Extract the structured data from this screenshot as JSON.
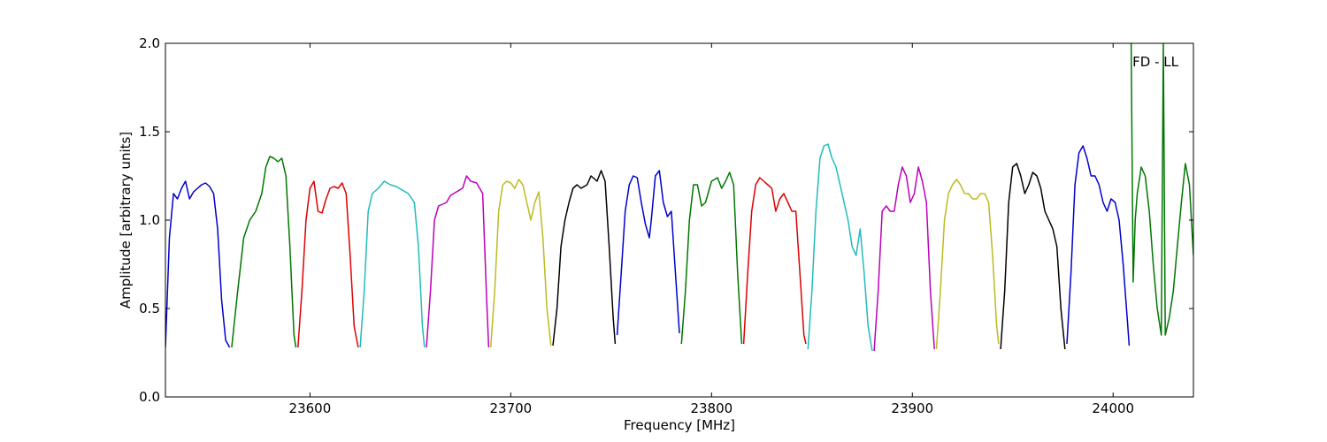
{
  "chart_data": {
    "type": "line",
    "title": "",
    "xlabel": "Frequency [MHz]",
    "ylabel": "Amplitude [arbitrary units]",
    "xlim": [
      23528,
      24040
    ],
    "ylim": [
      0.0,
      2.0
    ],
    "x_ticks": [
      23600,
      23700,
      23800,
      23900,
      24000
    ],
    "x_tick_labels": [
      "23600",
      "23700",
      "23800",
      "23900",
      "24000"
    ],
    "y_ticks": [
      0.0,
      0.5,
      1.0,
      1.5,
      2.0
    ],
    "y_tick_labels": [
      "0.0",
      "0.5",
      "1.0",
      "1.5",
      "2.0"
    ],
    "grid": false,
    "annotation": "FD - LL",
    "series": [
      {
        "color": "#0000cc",
        "x": [
          23528,
          23530,
          23532,
          23534,
          23536,
          23538,
          23540,
          23542,
          23544,
          23546,
          23548,
          23550,
          23552,
          23554,
          23556,
          23558,
          23560
        ],
        "y": [
          0.28,
          0.9,
          1.15,
          1.12,
          1.18,
          1.22,
          1.12,
          1.16,
          1.18,
          1.2,
          1.21,
          1.19,
          1.15,
          0.95,
          0.55,
          0.32,
          0.28
        ]
      },
      {
        "color": "#007700",
        "x": [
          23561,
          23564,
          23567,
          23570,
          23573,
          23576,
          23578,
          23580,
          23582,
          23584,
          23586,
          23588,
          23590,
          23592,
          23593
        ],
        "y": [
          0.28,
          0.6,
          0.9,
          1.0,
          1.05,
          1.15,
          1.3,
          1.36,
          1.35,
          1.33,
          1.35,
          1.25,
          0.85,
          0.35,
          0.28
        ]
      },
      {
        "color": "#dd0000",
        "x": [
          23594,
          23596,
          23598,
          23600,
          23602,
          23604,
          23606,
          23608,
          23610,
          23612,
          23614,
          23616,
          23618,
          23620,
          23622,
          23624
        ],
        "y": [
          0.28,
          0.6,
          1.0,
          1.18,
          1.22,
          1.05,
          1.04,
          1.12,
          1.18,
          1.19,
          1.18,
          1.21,
          1.15,
          0.8,
          0.4,
          0.28
        ]
      },
      {
        "color": "#22bbbb",
        "x": [
          23625,
          23627,
          23629,
          23631,
          23634,
          23637,
          23640,
          23643,
          23646,
          23649,
          23652,
          23654,
          23656,
          23657
        ],
        "y": [
          0.28,
          0.6,
          1.05,
          1.15,
          1.18,
          1.22,
          1.2,
          1.19,
          1.17,
          1.15,
          1.1,
          0.85,
          0.4,
          0.28
        ]
      },
      {
        "color": "#bb00bb",
        "x": [
          23658,
          23660,
          23662,
          23664,
          23666,
          23668,
          23670,
          23673,
          23676,
          23678,
          23680,
          23683,
          23686,
          23688,
          23689
        ],
        "y": [
          0.28,
          0.6,
          1.0,
          1.08,
          1.09,
          1.1,
          1.14,
          1.16,
          1.18,
          1.25,
          1.22,
          1.21,
          1.15,
          0.55,
          0.28
        ]
      },
      {
        "color": "#bbbb22",
        "x": [
          23690,
          23692,
          23694,
          23696,
          23698,
          23700,
          23702,
          23704,
          23706,
          23708,
          23710,
          23712,
          23714,
          23716,
          23718,
          23720
        ],
        "y": [
          0.28,
          0.6,
          1.05,
          1.2,
          1.22,
          1.21,
          1.18,
          1.23,
          1.2,
          1.1,
          1.0,
          1.1,
          1.16,
          0.9,
          0.5,
          0.29
        ]
      },
      {
        "color": "#000000",
        "x": [
          23721,
          23723,
          23725,
          23727,
          23729,
          23731,
          23733,
          23735,
          23738,
          23740,
          23743,
          23745,
          23747,
          23749,
          23751,
          23752
        ],
        "y": [
          0.29,
          0.5,
          0.85,
          1.0,
          1.1,
          1.18,
          1.2,
          1.18,
          1.2,
          1.25,
          1.22,
          1.28,
          1.22,
          0.85,
          0.45,
          0.3
        ]
      },
      {
        "color": "#0000cc",
        "x": [
          23753,
          23755,
          23757,
          23759,
          23761,
          23763,
          23765,
          23767,
          23769,
          23770,
          23772,
          23774,
          23776,
          23778,
          23780,
          23782,
          23784
        ],
        "y": [
          0.35,
          0.7,
          1.05,
          1.2,
          1.25,
          1.24,
          1.1,
          0.98,
          0.9,
          1.0,
          1.25,
          1.28,
          1.1,
          1.02,
          1.05,
          0.7,
          0.36
        ]
      },
      {
        "color": "#007700",
        "x": [
          23785,
          23787,
          23789,
          23791,
          23793,
          23795,
          23797,
          23800,
          23803,
          23805,
          23807,
          23809,
          23811,
          23813,
          23815
        ],
        "y": [
          0.3,
          0.6,
          1.0,
          1.2,
          1.2,
          1.08,
          1.1,
          1.22,
          1.24,
          1.18,
          1.22,
          1.27,
          1.2,
          0.7,
          0.3
        ]
      },
      {
        "color": "#dd0000",
        "x": [
          23816,
          23818,
          23820,
          23822,
          23824,
          23826,
          23828,
          23830,
          23832,
          23834,
          23836,
          23838,
          23840,
          23842,
          23844,
          23846,
          23847
        ],
        "y": [
          0.3,
          0.7,
          1.05,
          1.2,
          1.24,
          1.22,
          1.2,
          1.18,
          1.05,
          1.12,
          1.15,
          1.1,
          1.05,
          1.05,
          0.7,
          0.35,
          0.3
        ]
      },
      {
        "color": "#22bbbb",
        "x": [
          23848,
          23850,
          23852,
          23854,
          23856,
          23858,
          23860,
          23862,
          23864,
          23866,
          23868,
          23870,
          23872,
          23874,
          23876,
          23878,
          23880
        ],
        "y": [
          0.27,
          0.6,
          1.05,
          1.35,
          1.42,
          1.43,
          1.35,
          1.3,
          1.2,
          1.1,
          1.0,
          0.85,
          0.8,
          0.95,
          0.7,
          0.4,
          0.26
        ]
      },
      {
        "color": "#bb00bb",
        "x": [
          23881,
          23883,
          23885,
          23887,
          23889,
          23891,
          23893,
          23895,
          23897,
          23899,
          23901,
          23903,
          23905,
          23907,
          23909,
          23911
        ],
        "y": [
          0.26,
          0.6,
          1.05,
          1.08,
          1.05,
          1.05,
          1.2,
          1.3,
          1.25,
          1.1,
          1.15,
          1.3,
          1.22,
          1.1,
          0.6,
          0.27
        ]
      },
      {
        "color": "#bbbb22",
        "x": [
          23912,
          23914,
          23916,
          23918,
          23920,
          23922,
          23924,
          23926,
          23928,
          23930,
          23932,
          23934,
          23936,
          23938,
          23940,
          23942,
          23943
        ],
        "y": [
          0.27,
          0.6,
          1.0,
          1.15,
          1.2,
          1.23,
          1.2,
          1.15,
          1.15,
          1.12,
          1.12,
          1.15,
          1.15,
          1.1,
          0.8,
          0.4,
          0.3
        ]
      },
      {
        "color": "#000000",
        "x": [
          23944,
          23946,
          23948,
          23950,
          23952,
          23954,
          23956,
          23958,
          23960,
          23962,
          23964,
          23966,
          23968,
          23970,
          23972,
          23974,
          23976
        ],
        "y": [
          0.27,
          0.6,
          1.1,
          1.3,
          1.32,
          1.25,
          1.15,
          1.2,
          1.27,
          1.25,
          1.18,
          1.05,
          1.0,
          0.95,
          0.85,
          0.5,
          0.27
        ]
      },
      {
        "color": "#0000cc",
        "x": [
          23977,
          23979,
          23981,
          23983,
          23985,
          23987,
          23989,
          23991,
          23993,
          23995,
          23997,
          23999,
          24001,
          24003,
          24005,
          24007,
          24008
        ],
        "y": [
          0.3,
          0.7,
          1.2,
          1.38,
          1.42,
          1.35,
          1.25,
          1.25,
          1.2,
          1.1,
          1.05,
          1.12,
          1.1,
          1.0,
          0.75,
          0.45,
          0.29
        ]
      },
      {
        "color": "#007700",
        "x": [
          24009,
          24010,
          24011,
          24012,
          24014,
          24016,
          24018,
          24020,
          24022,
          24024,
          24025,
          24026,
          24028,
          24030,
          24032,
          24034,
          24036,
          24038,
          24040
        ],
        "y": [
          2.0,
          0.65,
          1.0,
          1.15,
          1.3,
          1.25,
          1.05,
          0.75,
          0.5,
          0.35,
          2.0,
          0.35,
          0.45,
          0.6,
          0.85,
          1.1,
          1.32,
          1.2,
          0.8
        ]
      }
    ]
  }
}
